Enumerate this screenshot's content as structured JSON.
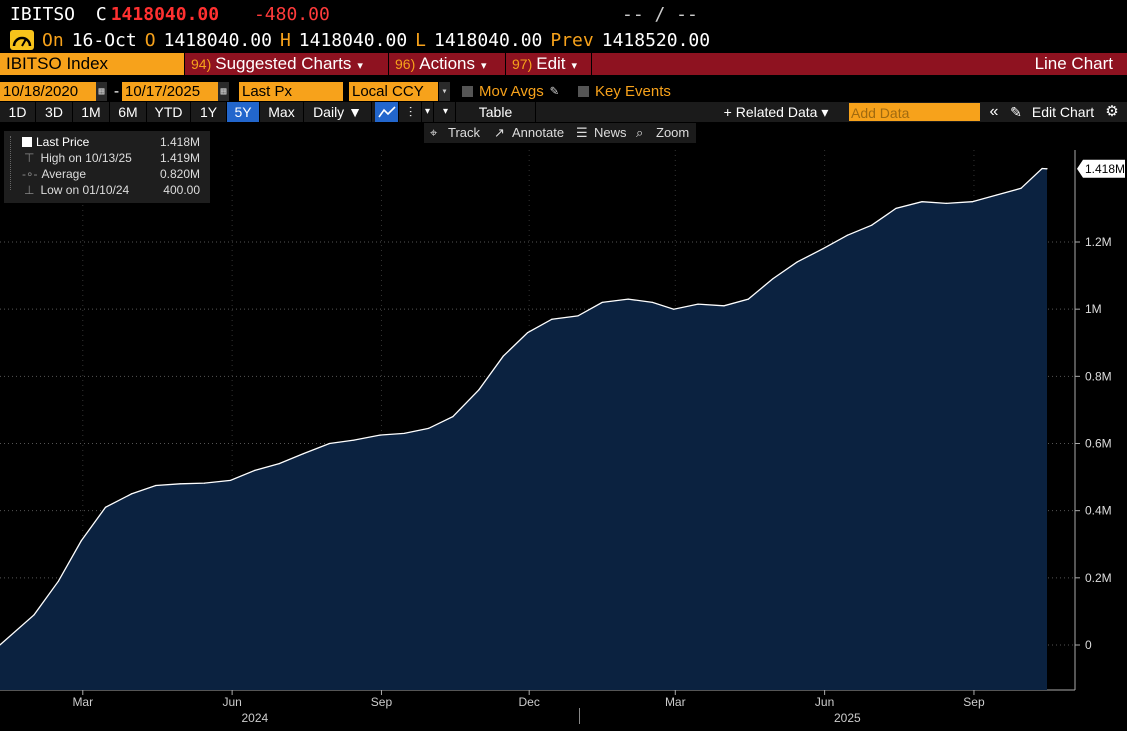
{
  "header": {
    "ticker": "IBITSO",
    "close_label": "C",
    "close_value": "1418040.00",
    "change": "-480.00",
    "bidask": "-- / --",
    "on_label": "On",
    "date": "16-Oct",
    "open_label": "O",
    "open_value": "1418040.00",
    "high_label": "H",
    "high_value": "1418040.00",
    "low_label": "L",
    "low_value": "1418040.00",
    "prev_label": "Prev",
    "prev_value": "1418520.00"
  },
  "menubar": {
    "security": "IBITSO Index",
    "suggested_num": "94)",
    "suggested": "Suggested Charts",
    "actions_num": "96)",
    "actions": "Actions",
    "edit_num": "97)",
    "edit": "Edit",
    "chart_type": "Line Chart"
  },
  "controls": {
    "start_date": "10/18/2020",
    "end_date": "10/17/2025",
    "dash": "-",
    "field": "Last Px",
    "currency": "Local CCY",
    "mov_avgs": "Mov Avgs",
    "key_events": "Key Events"
  },
  "toolbar": {
    "periods": [
      "1D",
      "3D",
      "1M",
      "6M",
      "YTD",
      "1Y",
      "5Y",
      "Max"
    ],
    "active_period": "5Y",
    "frequency": "Daily ▼",
    "table": "Table",
    "related": "+ Related Data ▾",
    "add_data_placeholder": "Add Data",
    "edit_chart": "Edit Chart"
  },
  "subtools": {
    "track": "Track",
    "annotate": "Annotate",
    "news": "News",
    "zoom": "Zoom"
  },
  "legend": {
    "last_label": "Last Price",
    "last_value": "1.418M",
    "high_label": "High on 10/13/25",
    "high_value": "1.419M",
    "avg_label": "Average",
    "avg_value": "0.820M",
    "low_label": "Low on 01/10/24",
    "low_value": "400.00"
  },
  "colors": {
    "accent_orange": "#f7a21b",
    "menubar_red": "#8e1220",
    "area_fill": "#0b2240",
    "line": "#ffffff",
    "active_tab": "#2266cc"
  },
  "chart_data": {
    "type": "area",
    "series": [
      {
        "name": "Last Price",
        "x": [
          "2024-01-10",
          "2024-01-31",
          "2024-02-15",
          "2024-02-29",
          "2024-03-15",
          "2024-03-31",
          "2024-04-15",
          "2024-04-30",
          "2024-05-15",
          "2024-05-31",
          "2024-06-15",
          "2024-06-30",
          "2024-07-15",
          "2024-07-31",
          "2024-08-15",
          "2024-08-31",
          "2024-09-15",
          "2024-09-30",
          "2024-10-15",
          "2024-10-31",
          "2024-11-15",
          "2024-11-30",
          "2024-12-15",
          "2024-12-31",
          "2025-01-15",
          "2025-01-31",
          "2025-02-15",
          "2025-02-28",
          "2025-03-15",
          "2025-03-31",
          "2025-04-15",
          "2025-04-30",
          "2025-05-15",
          "2025-05-31",
          "2025-06-15",
          "2025-06-30",
          "2025-07-15",
          "2025-07-31",
          "2025-08-15",
          "2025-08-31",
          "2025-09-15",
          "2025-09-30",
          "2025-10-13",
          "2025-10-16"
        ],
        "values": [
          400,
          90000,
          190000,
          310000,
          410000,
          450000,
          475000,
          480000,
          482000,
          490000,
          520000,
          540000,
          570000,
          600000,
          610000,
          625000,
          630000,
          645000,
          680000,
          760000,
          860000,
          930000,
          970000,
          980000,
          1020000,
          1030000,
          1020000,
          1000000,
          1015000,
          1010000,
          1030000,
          1090000,
          1140000,
          1180000,
          1220000,
          1250000,
          1300000,
          1320000,
          1315000,
          1320000,
          1340000,
          1360000,
          1419000,
          1418040
        ]
      }
    ],
    "x_ticks": [
      "Mar",
      "Jun",
      "Sep",
      "Dec",
      "Mar",
      "Jun",
      "Sep"
    ],
    "year_labels": [
      "2024",
      "2025"
    ],
    "y_ticks": [
      "0",
      "0.2M",
      "0.4M",
      "0.6M",
      "0.8M",
      "1M",
      "1.2M"
    ],
    "ylim": [
      -130000,
      1440000
    ],
    "last_value_label": "1.418M",
    "grid": true
  }
}
